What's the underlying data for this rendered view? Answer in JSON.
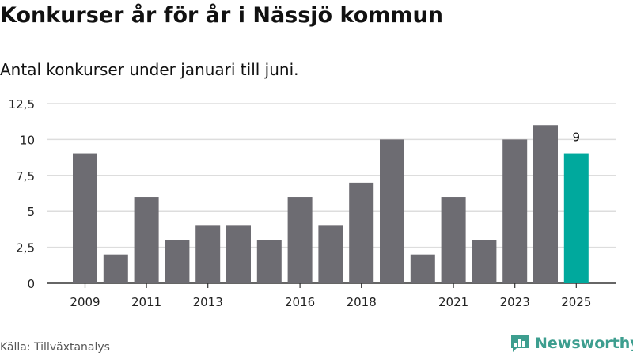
{
  "title": "Konkurser år för år i Nässjö kommun",
  "subtitle": "Antal konkurser under januari till juni.",
  "source": "Källa: Tillväxtanalys",
  "brand": "Newsworthy",
  "colors": {
    "bar": "#6d6c72",
    "highlight": "#00a99d",
    "grid": "#dddddd",
    "axis": "#333333",
    "brand": "#3d9e8f"
  },
  "chart_data": {
    "type": "bar",
    "title": "Konkurser år för år i Nässjö kommun",
    "subtitle": "Antal konkurser under januari till juni.",
    "categories": [
      "2009",
      "2010",
      "2011",
      "2012",
      "2013",
      "2014",
      "2015",
      "2016",
      "2017",
      "2018",
      "2019",
      "2020",
      "2021",
      "2022",
      "2023",
      "2024",
      "2025"
    ],
    "values": [
      9,
      2,
      6,
      3,
      4,
      4,
      3,
      6,
      4,
      7,
      10,
      2,
      6,
      3,
      10,
      11,
      9
    ],
    "highlight_index": 16,
    "data_labels": [
      {
        "index": 16,
        "text": "9"
      }
    ],
    "x_tick_labels": [
      "2009",
      "2011",
      "2013",
      "2016",
      "2018",
      "2021",
      "2023",
      "2025"
    ],
    "y_ticks": [
      0,
      2.5,
      5,
      7.5,
      10,
      12.5
    ],
    "y_tick_labels": [
      "0",
      "2,5",
      "5",
      "7,5",
      "10",
      "12,5"
    ],
    "ylim": [
      0,
      12.5
    ],
    "xlabel": "",
    "ylabel": "",
    "grid": true,
    "legend": "none"
  }
}
